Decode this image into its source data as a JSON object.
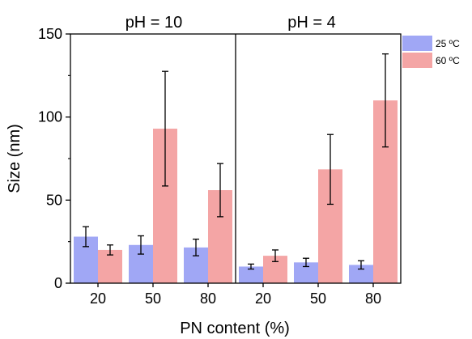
{
  "chart_data": {
    "type": "bar",
    "xlabel": "PN content (%)",
    "ylabel": "Size (nm)",
    "ylim": [
      0,
      150
    ],
    "yticks": [
      0,
      50,
      100,
      150
    ],
    "grid": false,
    "legend_position": "right",
    "panels": [
      {
        "title": "pH = 10",
        "categories": [
          "20",
          "50",
          "80"
        ],
        "series": [
          {
            "name": "25 ºC",
            "values": [
              28,
              23,
              21.5
            ],
            "errors": [
              6,
              5.5,
              5
            ],
            "color": "#a0a7f5"
          },
          {
            "name": "60 ºC",
            "values": [
              20,
              93,
              56
            ],
            "errors": [
              3,
              34.5,
              16
            ],
            "color": "#f4a5a5"
          }
        ]
      },
      {
        "title": "pH = 4",
        "categories": [
          "20",
          "50",
          "80"
        ],
        "series": [
          {
            "name": "25 ºC",
            "values": [
              10,
              12.5,
              11
            ],
            "errors": [
              1.5,
              2.5,
              2.5
            ],
            "color": "#a0a7f5"
          },
          {
            "name": "60 ºC",
            "values": [
              16.5,
              68.5,
              110
            ],
            "errors": [
              3.5,
              21,
              28
            ],
            "color": "#f4a5a5"
          }
        ]
      }
    ]
  }
}
